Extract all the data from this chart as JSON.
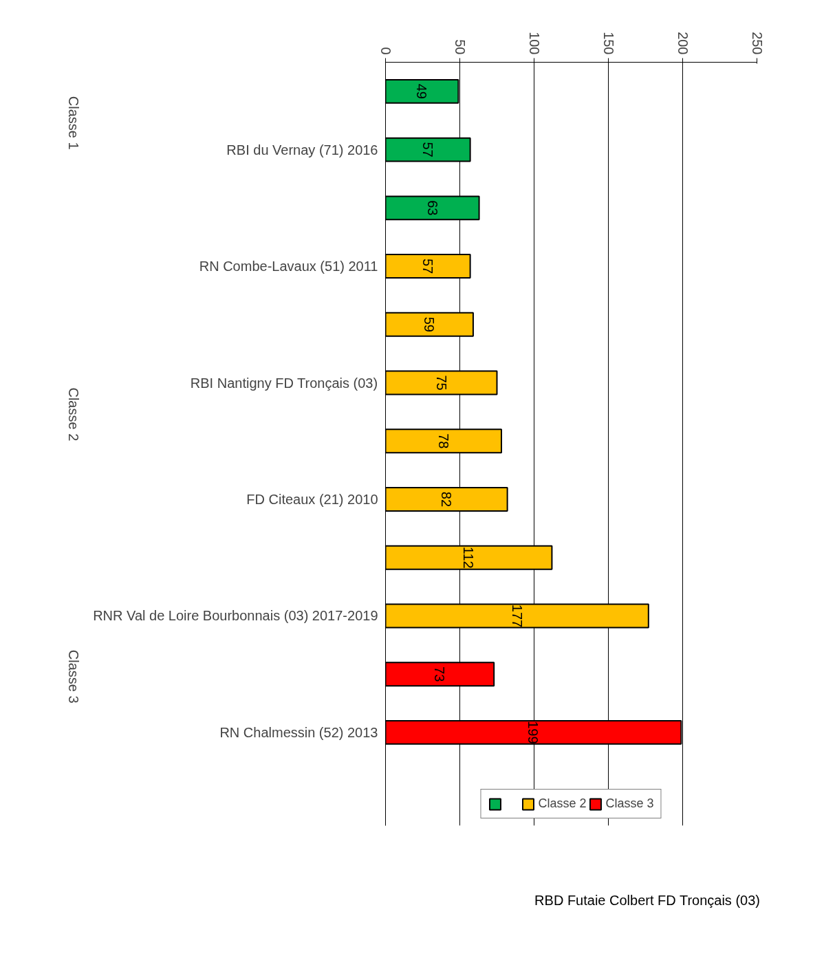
{
  "chart_data": {
    "type": "bar",
    "orientation": "horizontal",
    "categories": [
      null,
      "RBI du Vernay (71) 2016",
      null,
      "RN Combe-Lavaux (51) 2011",
      null,
      "RBI Nantigny FD Tronçais (03)",
      null,
      "FD Citeaux (21) 2010",
      null,
      "RNR Val de Loire Bourbonnais (03) 2017-2019",
      null,
      "RN Chalmessin (52) 2013"
    ],
    "series": [
      {
        "color": "#00b050",
        "values": [
          49,
          57,
          63,
          null,
          null,
          null,
          null,
          null,
          null,
          null,
          null,
          null
        ]
      },
      {
        "name": "Classe 2",
        "color": "#ffc000",
        "values": [
          null,
          null,
          null,
          57,
          59,
          75,
          78,
          82,
          112,
          177,
          null,
          null
        ]
      },
      {
        "name": "Classe 3",
        "color": "#ff0000",
        "values": [
          null,
          null,
          null,
          null,
          null,
          null,
          null,
          null,
          null,
          null,
          73,
          199
        ]
      }
    ],
    "xlim": [
      0,
      250
    ],
    "xticks": [
      0,
      50,
      100,
      150,
      200,
      250
    ],
    "grid": "x",
    "legend": "bottom",
    "data_labels": true,
    "annotations": [
      "Classe 1",
      "Classe 2",
      "Classe 3",
      "RBD Futaie Colbert FD Tronçais (03)"
    ]
  }
}
